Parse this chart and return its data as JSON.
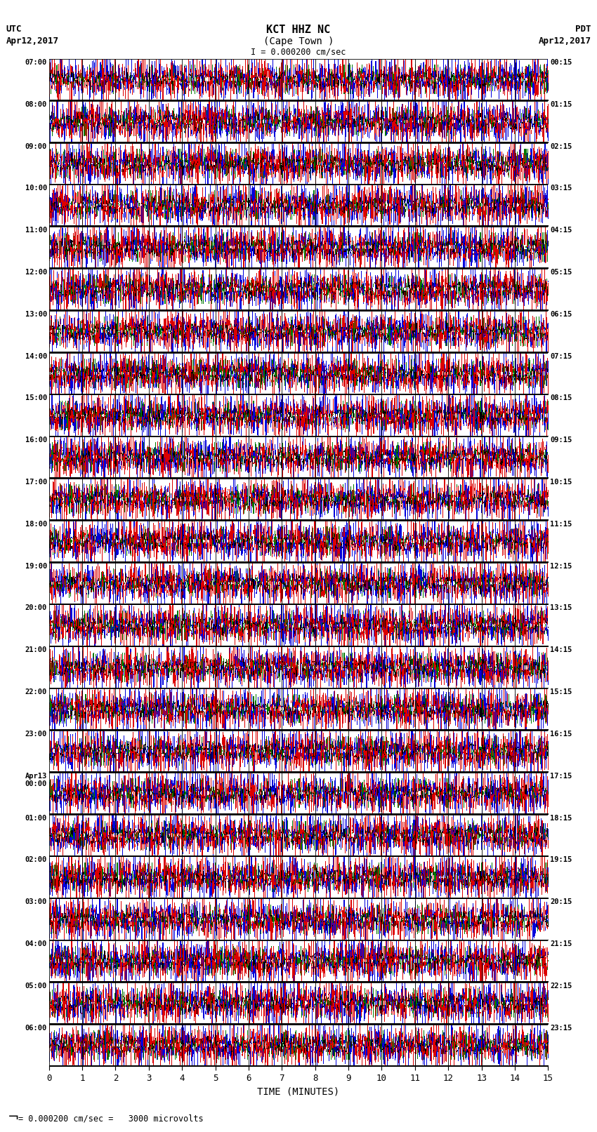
{
  "title_line1": "KCT HHZ NC",
  "title_line2": "(Cape Town )",
  "scale_label": "I = 0.000200 cm/sec",
  "left_label_top": "UTC",
  "left_label_date": "Apr12,2017",
  "right_label_top": "PDT",
  "right_label_date": "Apr12,2017",
  "bottom_label": "TIME (MINUTES)",
  "footer_label": "= 0.000200 cm/sec =   3000 microvolts",
  "utc_times": [
    "07:00",
    "08:00",
    "09:00",
    "10:00",
    "11:00",
    "12:00",
    "13:00",
    "14:00",
    "15:00",
    "16:00",
    "17:00",
    "18:00",
    "19:00",
    "20:00",
    "21:00",
    "22:00",
    "23:00",
    "Apr13\n00:00",
    "01:00",
    "02:00",
    "03:00",
    "04:00",
    "05:00",
    "06:00"
  ],
  "pdt_times": [
    "00:15",
    "01:15",
    "02:15",
    "03:15",
    "04:15",
    "05:15",
    "06:15",
    "07:15",
    "08:15",
    "09:15",
    "10:15",
    "11:15",
    "12:15",
    "13:15",
    "14:15",
    "15:15",
    "16:15",
    "17:15",
    "18:15",
    "19:15",
    "20:15",
    "21:15",
    "22:15",
    "23:15"
  ],
  "n_rows": 24,
  "x_ticks": [
    0,
    1,
    2,
    3,
    4,
    5,
    6,
    7,
    8,
    9,
    10,
    11,
    12,
    13,
    14,
    15
  ],
  "background": "#ffffff",
  "seed": 42
}
